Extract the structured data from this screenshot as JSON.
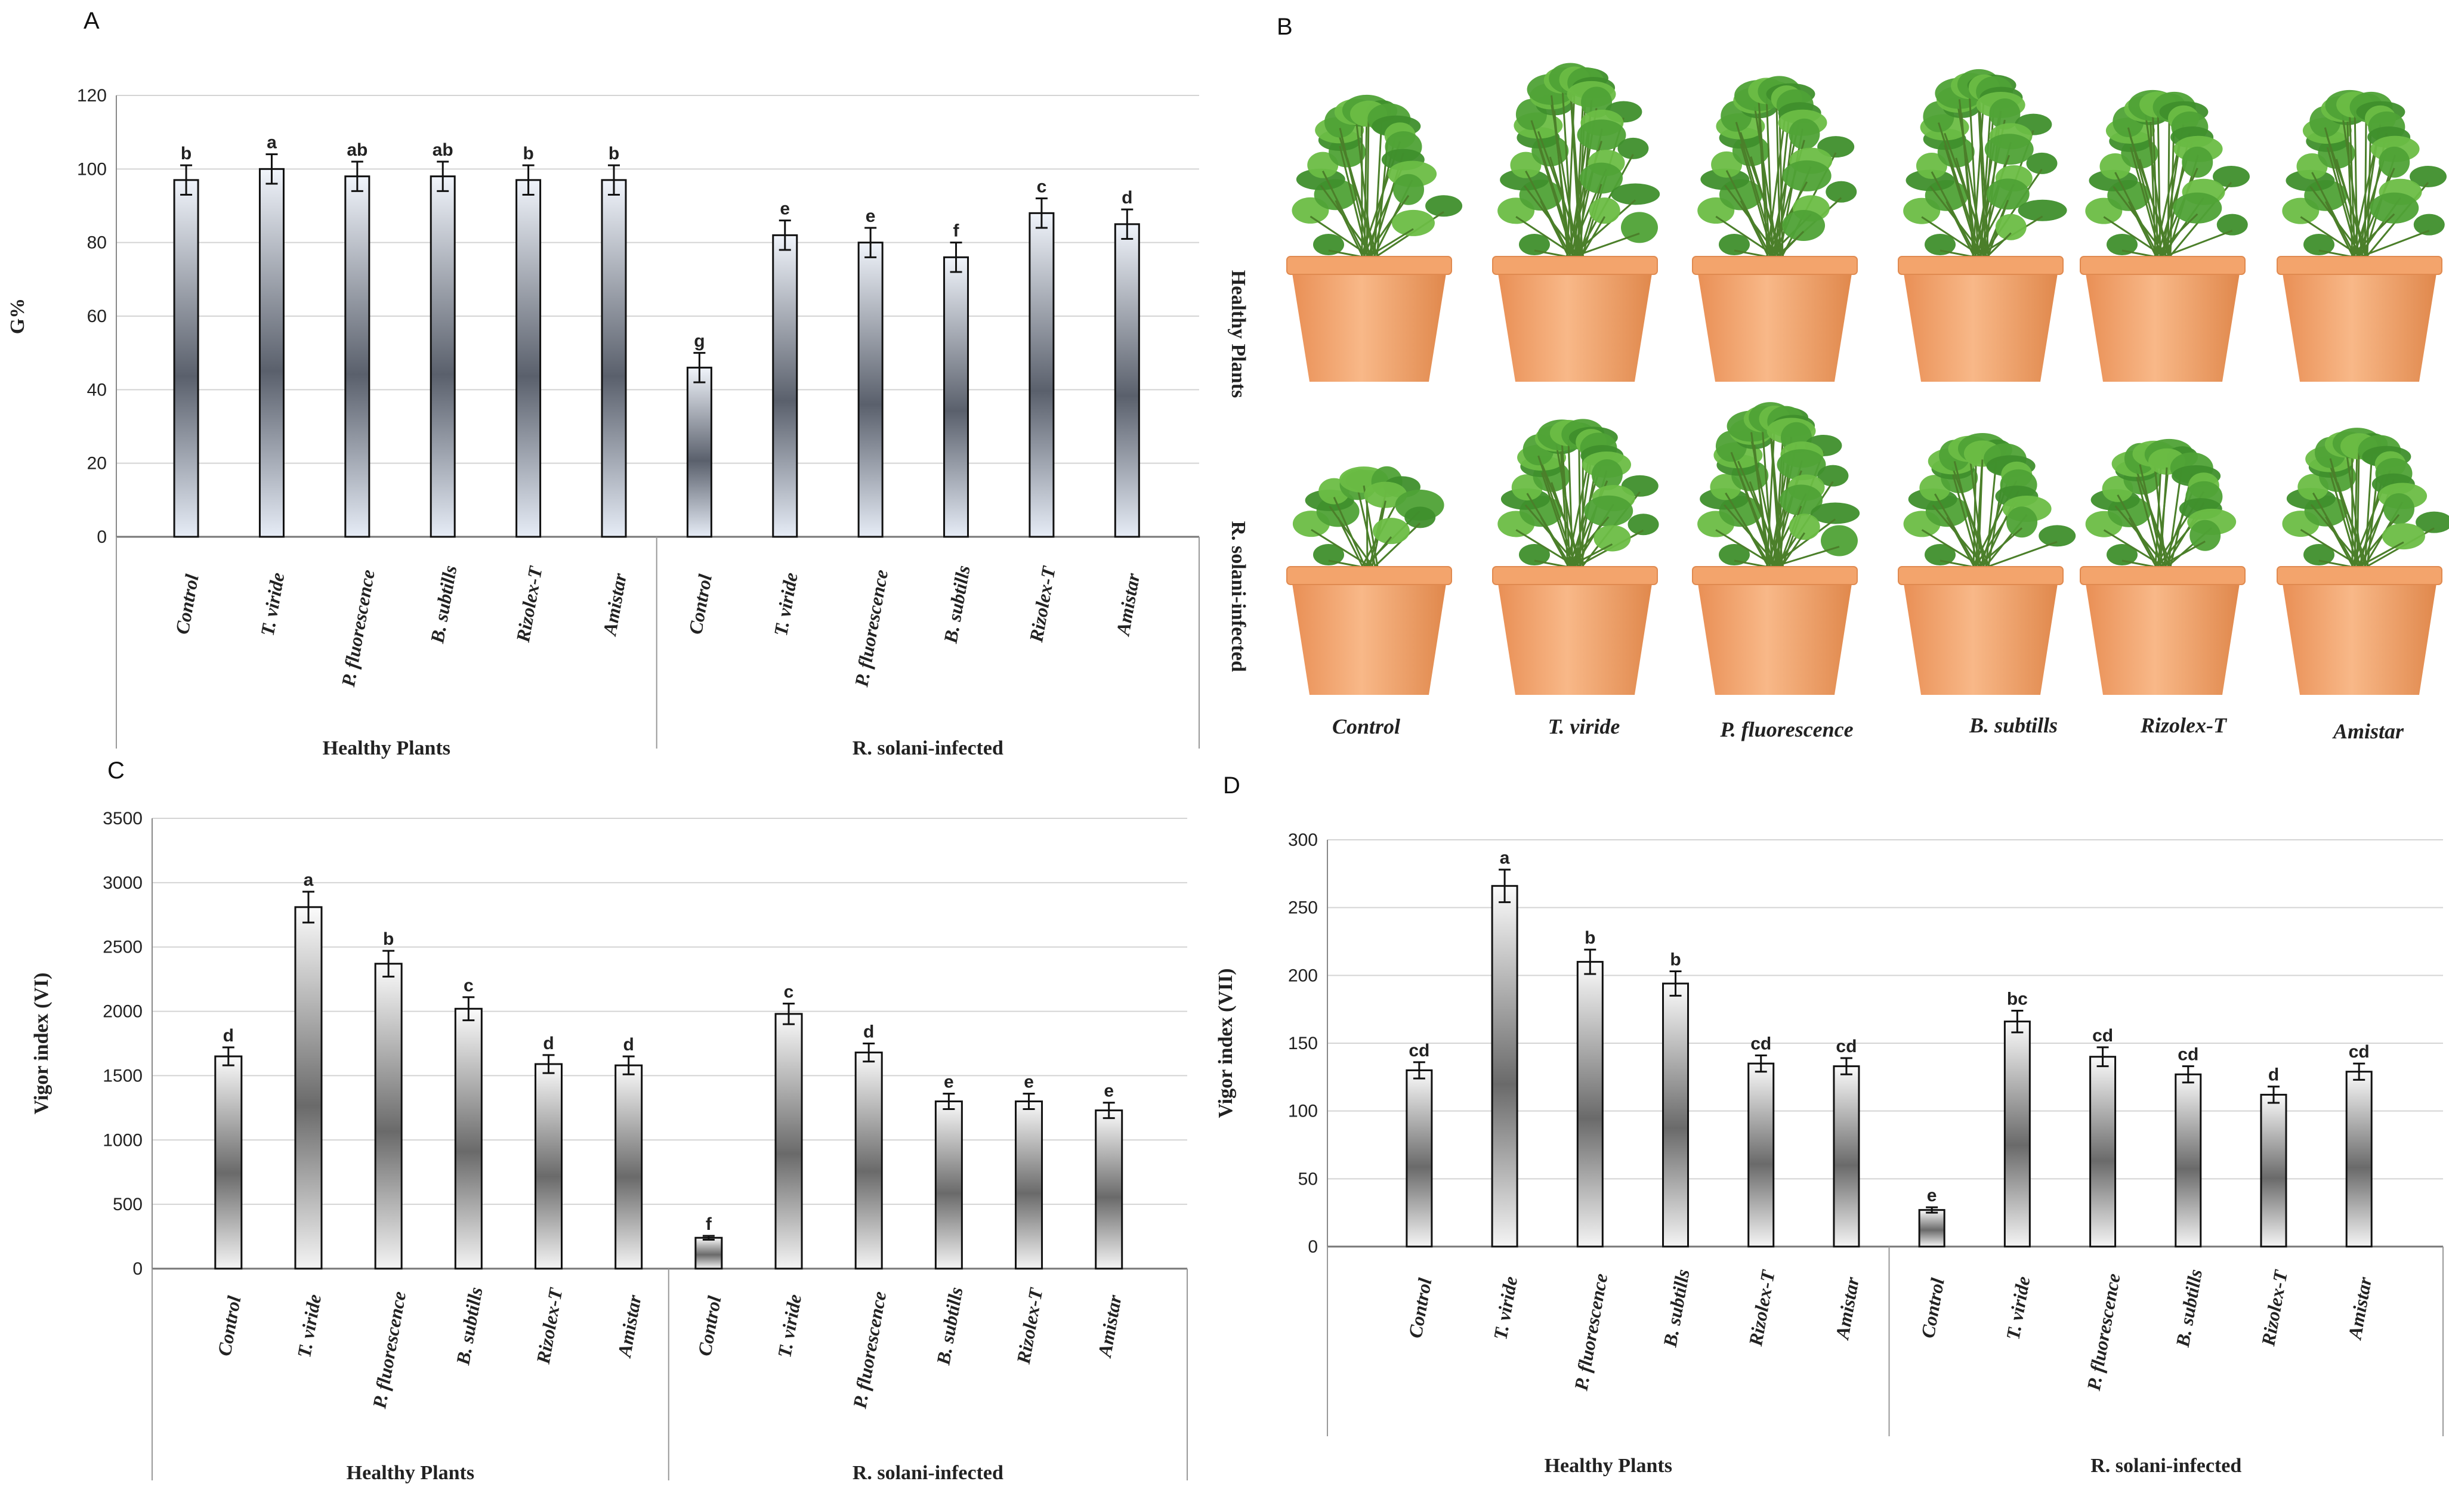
{
  "panels": {
    "A": "A",
    "B": "B",
    "C": "C",
    "D": "D"
  },
  "photo": {
    "row_labels": [
      "Healthy Plants",
      "R. solani-infected"
    ],
    "col_labels": [
      "Control",
      "T. viride",
      "P. fluorescence",
      "B. subtills",
      "Rizolex-T",
      "Amistar"
    ]
  },
  "colors": {
    "pot": "#f2a46f",
    "pot_dark": "#d9814a",
    "leaf": "#5aa83a",
    "leaf_dark": "#2f7a24",
    "bar_edge": "#111111",
    "bar_mid": "#555a66",
    "bar_light_a": "#e8eef8",
    "bar_light_c": "#f7f7f7"
  },
  "chart_data": [
    {
      "id": "A",
      "type": "bar",
      "ylabel": "G%",
      "ylim": [
        0,
        120
      ],
      "yticks": [
        0,
        20,
        40,
        60,
        80,
        100,
        120
      ],
      "groups": [
        "Healthy Plants",
        "R. solani-infected"
      ],
      "categories": [
        "Control",
        "T. viride",
        "P. fluorescence",
        "B. subtills",
        "Rizolex-T",
        "Amistar",
        "Control",
        "T. viride",
        "P. fluorescence",
        "B. subtills",
        "Rizolex-T",
        "Amistar"
      ],
      "values": [
        97,
        100,
        98,
        98,
        97,
        97,
        46,
        82,
        80,
        76,
        88,
        85
      ],
      "errors": [
        4,
        4,
        4,
        4,
        4,
        4,
        4,
        4,
        4,
        4,
        4,
        4
      ],
      "letters": [
        "b",
        "a",
        "ab",
        "ab",
        "b",
        "b",
        "g",
        "e",
        "e",
        "f",
        "c",
        "d"
      ],
      "grid": true
    },
    {
      "id": "C",
      "type": "bar",
      "ylabel": "Vigor index (VI)",
      "ylim": [
        0,
        3500
      ],
      "yticks": [
        0,
        500,
        1000,
        1500,
        2000,
        2500,
        3000,
        3500
      ],
      "groups": [
        "Healthy Plants",
        "R. solani-infected"
      ],
      "categories": [
        "Control",
        "T. viride",
        "P. fluorescence",
        "B. subtills",
        "Rizolex-T",
        "Amistar",
        "Control",
        "T. viride",
        "P. fluorescence",
        "B. subtills",
        "Rizolex-T",
        "Amistar"
      ],
      "values": [
        1650,
        2810,
        2370,
        2020,
        1590,
        1580,
        240,
        1980,
        1680,
        1300,
        1300,
        1230
      ],
      "errors": [
        70,
        120,
        100,
        90,
        70,
        70,
        15,
        80,
        70,
        60,
        60,
        60
      ],
      "letters": [
        "d",
        "a",
        "b",
        "c",
        "d",
        "d",
        "f",
        "c",
        "d",
        "e",
        "e",
        "e"
      ],
      "grid": true
    },
    {
      "id": "D",
      "type": "bar",
      "ylabel": "Vigor index (VII)",
      "ylim": [
        0,
        300
      ],
      "yticks": [
        0,
        50,
        100,
        150,
        200,
        250,
        300
      ],
      "groups": [
        "Healthy Plants",
        "R. solani-infected"
      ],
      "categories": [
        "Control",
        "T. viride",
        "P. fluorescence",
        "B. subtills",
        "Rizolex-T",
        "Amistar",
        "Control",
        "T. viride",
        "P. fluorescence",
        "B. subtills",
        "Rizolex-T",
        "Amistar"
      ],
      "values": [
        130,
        266,
        210,
        194,
        135,
        133,
        27,
        166,
        140,
        127,
        112,
        129
      ],
      "errors": [
        6,
        12,
        9,
        9,
        6,
        6,
        2,
        8,
        7,
        6,
        6,
        6
      ],
      "letters": [
        "cd",
        "a",
        "b",
        "b",
        "cd",
        "cd",
        "e",
        "bc",
        "cd",
        "cd",
        "d",
        "cd"
      ],
      "grid": true
    }
  ]
}
